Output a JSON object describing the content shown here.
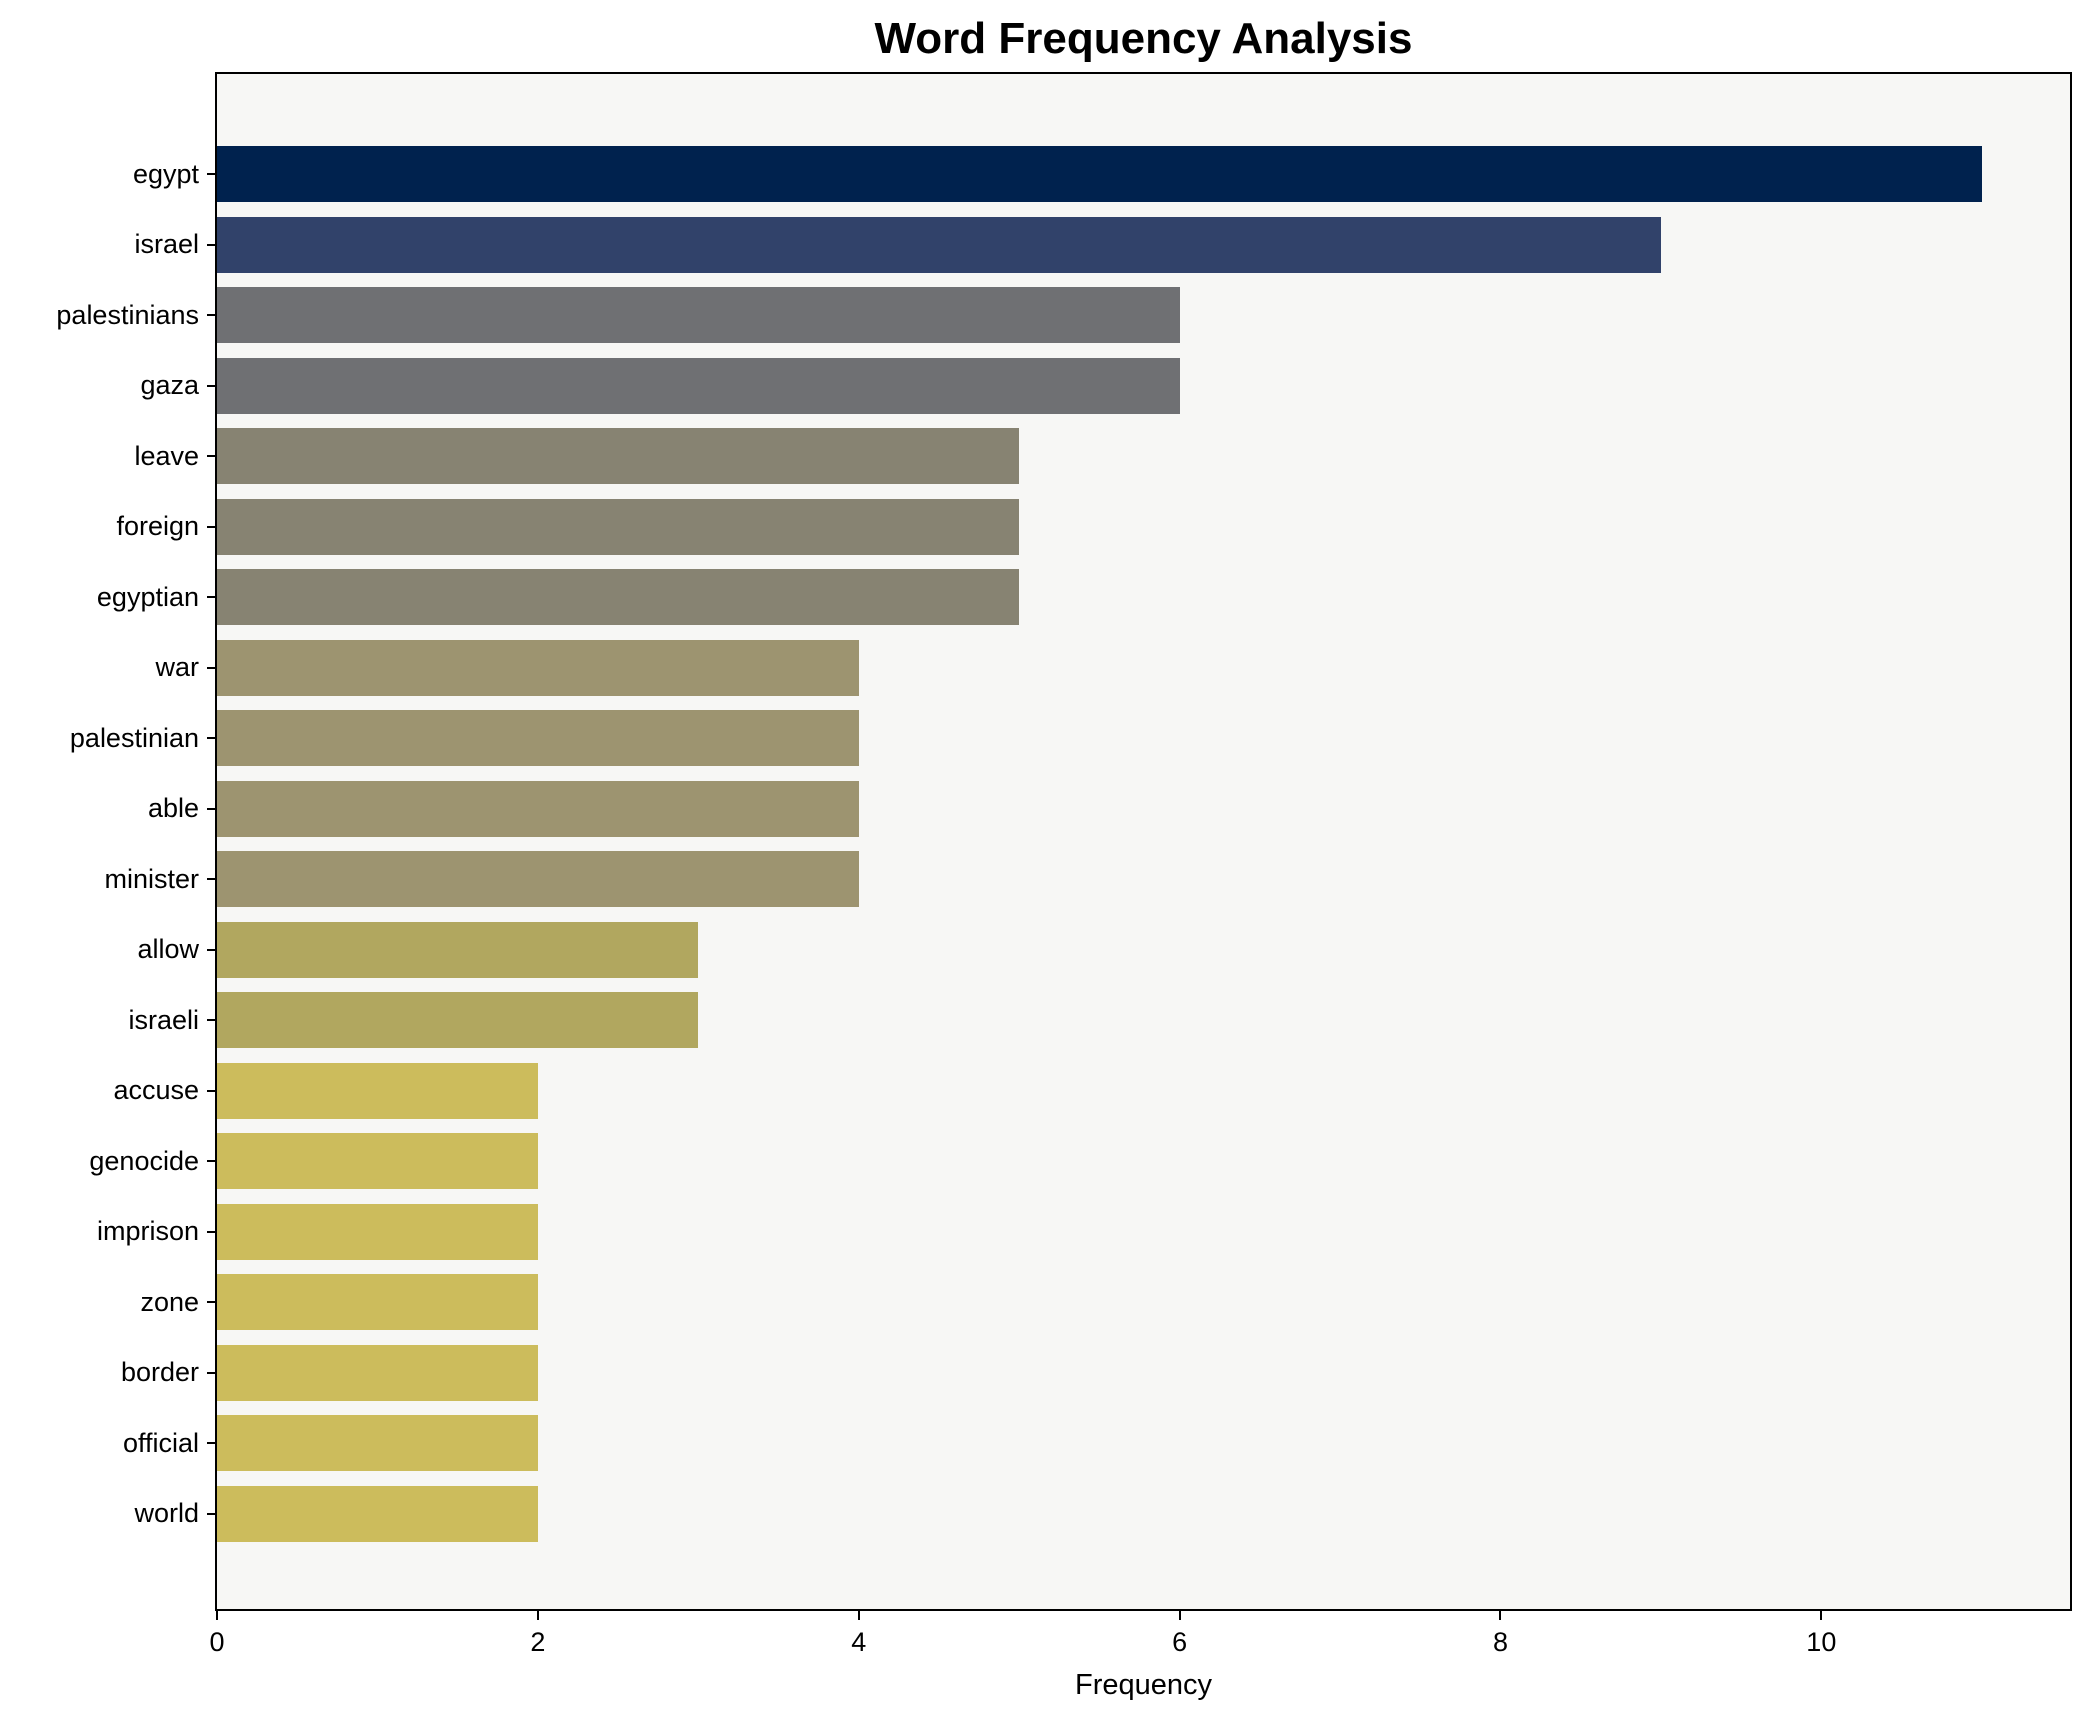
{
  "title": "Word Frequency Analysis",
  "chart_data": {
    "type": "bar",
    "orientation": "horizontal",
    "title": "Word Frequency Analysis",
    "xlabel": "Frequency",
    "ylabel": "",
    "categories": [
      "egypt",
      "israel",
      "palestinians",
      "gaza",
      "leave",
      "foreign",
      "egyptian",
      "war",
      "palestinian",
      "able",
      "minister",
      "allow",
      "israeli",
      "accuse",
      "genocide",
      "imprison",
      "zone",
      "border",
      "official",
      "world"
    ],
    "values": [
      11,
      9,
      6,
      6,
      5,
      5,
      5,
      4,
      4,
      4,
      4,
      3,
      3,
      2,
      2,
      2,
      2,
      2,
      2,
      2
    ],
    "bar_colors": [
      "#00224e",
      "#31426a",
      "#6f7073",
      "#6f7073",
      "#878372",
      "#878372",
      "#878372",
      "#9d9470",
      "#9d9470",
      "#9d9470",
      "#9d9470",
      "#b1a75f",
      "#b1a75f",
      "#ccbc5c",
      "#ccbc5c",
      "#ccbc5c",
      "#ccbc5c",
      "#ccbc5c",
      "#ccbc5c",
      "#ccbc5c"
    ],
    "xlim": [
      0,
      11.55
    ],
    "xticks": [
      0,
      2,
      4,
      6,
      8,
      10
    ],
    "grid": false,
    "legend_position": "none",
    "plot_background": "#f7f7f5",
    "figure_background": "#ffffff",
    "spine_color": "#000000"
  }
}
